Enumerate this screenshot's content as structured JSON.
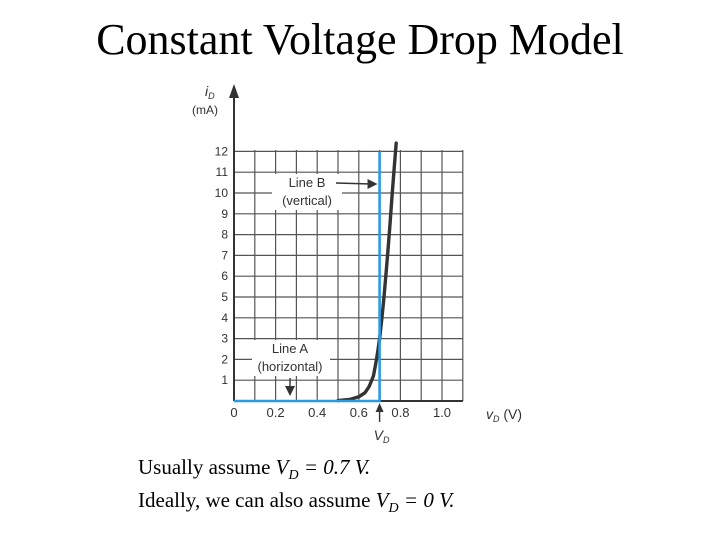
{
  "slide": {
    "title": "Constant Voltage Drop Model"
  },
  "notes": [
    {
      "text": "Usually assume ",
      "var": "V",
      "sub": "D",
      "rest": " = 0.7 V."
    },
    {
      "text": "Ideally, we can also assume ",
      "var": "V",
      "sub": "D",
      "rest": " = 0 V."
    }
  ],
  "chart_data": {
    "type": "line",
    "xlabel_var": "v",
    "xlabel_sub": "D",
    "xlabel_unit": "(V)",
    "ylabel_var": "i",
    "ylabel_sub": "D",
    "ylabel_unit": "(mA)",
    "xlim": [
      0,
      1.1
    ],
    "ylim": [
      0,
      12.5
    ],
    "x_ticks": [
      "0",
      "0.2",
      "0.4",
      "0.6",
      "0.8",
      "1.0"
    ],
    "x_tick_values": [
      0,
      0.2,
      0.4,
      0.6,
      0.8,
      1.0
    ],
    "y_ticks": [
      "1",
      "2",
      "3",
      "4",
      "5",
      "6",
      "7",
      "8",
      "9",
      "10",
      "11",
      "12"
    ],
    "y_tick_values": [
      1,
      2,
      3,
      4,
      5,
      6,
      7,
      8,
      9,
      10,
      11,
      12
    ],
    "grid": true,
    "grid_step_x": 0.1,
    "grid_step_y": 1,
    "series": [
      {
        "style": "curve",
        "color": "#333333",
        "x": [
          0.5,
          0.56,
          0.6,
          0.63,
          0.65,
          0.67,
          0.68,
          0.69,
          0.7,
          0.71,
          0.72,
          0.73,
          0.74,
          0.75,
          0.76,
          0.77,
          0.78
        ],
        "y": [
          0.02,
          0.08,
          0.2,
          0.4,
          0.7,
          1.2,
          1.7,
          2.3,
          3.0,
          3.9,
          4.9,
          6.0,
          7.2,
          8.5,
          9.9,
          11.2,
          12.4
        ]
      },
      {
        "style": "model",
        "color": "#2b9be0",
        "x": [
          0,
          0.7,
          0.7
        ],
        "y": [
          0,
          0,
          12
        ]
      }
    ],
    "annotations": [
      {
        "lines": [
          "Line B",
          "(vertical)"
        ],
        "arrow_to": [
          0.69,
          11.5
        ]
      },
      {
        "lines": [
          "Line A",
          "(horizontal)"
        ],
        "arrow_to": [
          0.25,
          0.2
        ]
      },
      {
        "label_var": "V",
        "label_sub": "D",
        "at_x": 0.7
      }
    ]
  }
}
